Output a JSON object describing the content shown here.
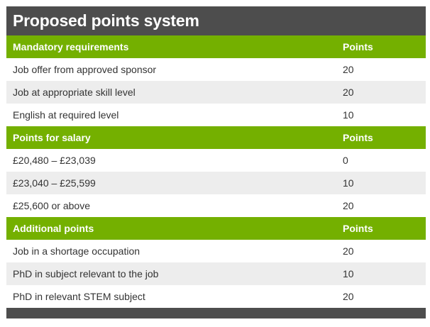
{
  "title": "Proposed points system",
  "sections": [
    {
      "header": {
        "label": "Mandatory requirements",
        "points_label": "Points"
      },
      "rows": [
        {
          "label": "Job offer from approved sponsor",
          "points": "20"
        },
        {
          "label": "Job at appropriate skill level",
          "points": "20"
        },
        {
          "label": "English at required level",
          "points": "10"
        }
      ]
    },
    {
      "header": {
        "label": "Points for salary",
        "points_label": "Points"
      },
      "rows": [
        {
          "label": "£20,480 – £23,039",
          "points": "0"
        },
        {
          "label": "£23,040 – £25,599",
          "points": "10"
        },
        {
          "label": "£25,600 or above",
          "points": "20"
        }
      ]
    },
    {
      "header": {
        "label": "Additional points",
        "points_label": "Points"
      },
      "rows": [
        {
          "label": "Job in a shortage occupation",
          "points": "20"
        },
        {
          "label": "PhD in subject relevant to the job",
          "points": "10"
        },
        {
          "label": "PhD in relevant STEM subject",
          "points": "20"
        }
      ]
    }
  ],
  "colors": {
    "title_bar": "#4d4d4d",
    "section_header": "#74b000",
    "row_alt": "#ededed",
    "text": "#333333"
  }
}
